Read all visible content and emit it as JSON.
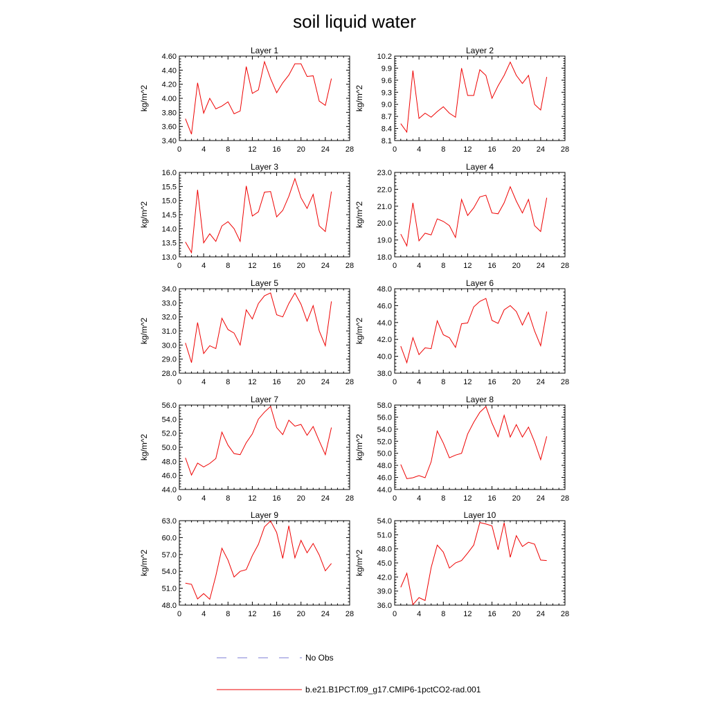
{
  "page_title": "soil liquid water",
  "chart_data": [
    {
      "type": "line",
      "title": "Layer 1",
      "ylabel": "kg/m^2",
      "xlim": [
        0,
        28
      ],
      "ylim": [
        3.4,
        4.6
      ],
      "xticks": [
        0,
        4,
        8,
        12,
        16,
        20,
        24,
        28
      ],
      "yticks": [
        "3.40",
        "3.60",
        "3.80",
        "4.00",
        "4.20",
        "4.40",
        "4.60"
      ],
      "series": [
        {
          "name": "b.e21.B1PCT.f09_g17.CMIP6-1pctCO2-rad.001",
          "x": [
            1,
            2,
            3,
            4,
            5,
            6,
            7,
            8,
            9,
            10,
            11,
            12,
            13,
            14,
            15,
            16,
            17,
            18,
            19,
            20,
            21,
            22,
            23,
            24,
            25
          ],
          "values": [
            3.71,
            3.49,
            4.22,
            3.79,
            4.0,
            3.85,
            3.89,
            3.95,
            3.78,
            3.82,
            4.45,
            4.07,
            4.12,
            4.52,
            4.28,
            4.08,
            4.22,
            4.33,
            4.49,
            4.49,
            4.31,
            4.32,
            3.96,
            3.9,
            4.28
          ]
        }
      ]
    },
    {
      "type": "line",
      "title": "Layer 2",
      "ylabel": "kg/m^2",
      "xlim": [
        0,
        28
      ],
      "ylim": [
        8.1,
        10.2
      ],
      "xticks": [
        0,
        4,
        8,
        12,
        16,
        20,
        24,
        28
      ],
      "yticks": [
        "8.1",
        "8.4",
        "8.7",
        "9.0",
        "9.3",
        "9.6",
        "9.9",
        "10.2"
      ],
      "series": [
        {
          "name": "b.e21.B1PCT.f09_g17.CMIP6-1pctCO2-rad.001",
          "x": [
            1,
            2,
            3,
            4,
            5,
            6,
            7,
            8,
            9,
            10,
            11,
            12,
            13,
            14,
            15,
            16,
            17,
            18,
            19,
            20,
            21,
            22,
            23,
            24,
            25
          ],
          "values": [
            8.52,
            8.31,
            9.84,
            8.65,
            8.78,
            8.68,
            8.82,
            8.94,
            8.78,
            8.68,
            9.9,
            9.22,
            9.22,
            9.86,
            9.72,
            9.15,
            9.46,
            9.72,
            10.05,
            9.72,
            9.52,
            9.72,
            9.0,
            8.86,
            9.68
          ]
        }
      ]
    },
    {
      "type": "line",
      "title": "Layer 3",
      "ylabel": "kg/m^2",
      "xlim": [
        0,
        28
      ],
      "ylim": [
        13.0,
        16.0
      ],
      "xticks": [
        0,
        4,
        8,
        12,
        16,
        20,
        24,
        28
      ],
      "yticks": [
        "13.0",
        "13.5",
        "14.0",
        "14.5",
        "15.0",
        "15.5",
        "16.0"
      ],
      "series": [
        {
          "name": "b.e21.B1PCT.f09_g17.CMIP6-1pctCO2-rad.001",
          "x": [
            1,
            2,
            3,
            4,
            5,
            6,
            7,
            8,
            9,
            10,
            11,
            12,
            13,
            14,
            15,
            16,
            17,
            18,
            19,
            20,
            21,
            22,
            23,
            24,
            25
          ],
          "values": [
            13.53,
            13.15,
            15.38,
            13.5,
            13.82,
            13.55,
            14.1,
            14.25,
            14.0,
            13.55,
            15.52,
            14.45,
            14.6,
            15.3,
            15.32,
            14.42,
            14.65,
            15.15,
            15.78,
            15.1,
            14.72,
            15.22,
            14.1,
            13.9,
            15.32
          ]
        }
      ]
    },
    {
      "type": "line",
      "title": "Layer 4",
      "ylabel": "kg/m^2",
      "xlim": [
        0,
        28
      ],
      "ylim": [
        18.0,
        23.0
      ],
      "xticks": [
        0,
        4,
        8,
        12,
        16,
        20,
        24,
        28
      ],
      "yticks": [
        "18.0",
        "19.0",
        "20.0",
        "21.0",
        "22.0",
        "23.0"
      ],
      "series": [
        {
          "name": "b.e21.B1PCT.f09_g17.CMIP6-1pctCO2-rad.001",
          "x": [
            1,
            2,
            3,
            4,
            5,
            6,
            7,
            8,
            9,
            10,
            11,
            12,
            13,
            14,
            15,
            16,
            17,
            18,
            19,
            20,
            21,
            22,
            23,
            24,
            25
          ],
          "values": [
            19.35,
            18.65,
            21.2,
            18.95,
            19.4,
            19.3,
            20.25,
            20.1,
            19.85,
            19.15,
            21.4,
            20.45,
            20.9,
            21.55,
            21.65,
            20.6,
            20.55,
            21.2,
            22.15,
            21.3,
            20.6,
            21.4,
            19.85,
            19.5,
            21.5
          ]
        }
      ]
    },
    {
      "type": "line",
      "title": "Layer 5",
      "ylabel": "kg/m^2",
      "xlim": [
        0,
        28
      ],
      "ylim": [
        28.0,
        34.0
      ],
      "xticks": [
        0,
        4,
        8,
        12,
        16,
        20,
        24,
        28
      ],
      "yticks": [
        "28.0",
        "29.0",
        "30.0",
        "31.0",
        "32.0",
        "33.0",
        "34.0"
      ],
      "series": [
        {
          "name": "b.e21.B1PCT.f09_g17.CMIP6-1pctCO2-rad.001",
          "x": [
            1,
            2,
            3,
            4,
            5,
            6,
            7,
            8,
            9,
            10,
            11,
            12,
            13,
            14,
            15,
            16,
            17,
            18,
            19,
            20,
            21,
            22,
            23,
            24,
            25
          ],
          "values": [
            30.15,
            28.75,
            31.6,
            29.4,
            29.95,
            29.75,
            31.9,
            31.1,
            30.85,
            30.0,
            32.5,
            31.85,
            32.95,
            33.5,
            33.7,
            32.15,
            32.0,
            32.95,
            33.7,
            32.9,
            31.7,
            32.8,
            31.0,
            29.95,
            33.1
          ]
        }
      ]
    },
    {
      "type": "line",
      "title": "Layer 6",
      "ylabel": "kg/m^2",
      "xlim": [
        0,
        28
      ],
      "ylim": [
        38.0,
        48.0
      ],
      "xticks": [
        0,
        4,
        8,
        12,
        16,
        20,
        24,
        28
      ],
      "yticks": [
        "38.0",
        "40.0",
        "42.0",
        "44.0",
        "46.0",
        "48.0"
      ],
      "series": [
        {
          "name": "b.e21.B1PCT.f09_g17.CMIP6-1pctCO2-rad.001",
          "x": [
            1,
            2,
            3,
            4,
            5,
            6,
            7,
            8,
            9,
            10,
            11,
            12,
            13,
            14,
            15,
            16,
            17,
            18,
            19,
            20,
            21,
            22,
            23,
            24,
            25
          ],
          "values": [
            41.2,
            39.25,
            42.2,
            40.2,
            41.0,
            40.9,
            44.2,
            42.55,
            42.2,
            41.05,
            43.85,
            43.95,
            45.85,
            46.5,
            46.85,
            44.25,
            43.9,
            45.5,
            46.0,
            45.3,
            43.7,
            45.2,
            43.0,
            41.25,
            45.3
          ]
        }
      ]
    },
    {
      "type": "line",
      "title": "Layer 7",
      "ylabel": "kg/m^2",
      "xlim": [
        0,
        28
      ],
      "ylim": [
        44.0,
        56.0
      ],
      "xticks": [
        0,
        4,
        8,
        12,
        16,
        20,
        24,
        28
      ],
      "yticks": [
        "44.0",
        "46.0",
        "48.0",
        "50.0",
        "52.0",
        "54.0",
        "56.0"
      ],
      "series": [
        {
          "name": "b.e21.B1PCT.f09_g17.CMIP6-1pctCO2-rad.001",
          "x": [
            1,
            2,
            3,
            4,
            5,
            6,
            7,
            8,
            9,
            10,
            11,
            12,
            13,
            14,
            15,
            16,
            17,
            18,
            19,
            20,
            21,
            22,
            23,
            24,
            25
          ],
          "values": [
            48.5,
            46.05,
            47.75,
            47.2,
            47.7,
            48.4,
            52.15,
            50.3,
            49.1,
            48.95,
            50.65,
            51.9,
            54.0,
            55.0,
            55.8,
            52.8,
            51.8,
            53.85,
            53.0,
            53.25,
            51.7,
            52.95,
            50.9,
            48.95,
            52.8
          ]
        }
      ]
    },
    {
      "type": "line",
      "title": "Layer 8",
      "ylabel": "kg/m^2",
      "xlim": [
        0,
        28
      ],
      "ylim": [
        44.0,
        58.0
      ],
      "xticks": [
        0,
        4,
        8,
        12,
        16,
        20,
        24,
        28
      ],
      "yticks": [
        "44.0",
        "46.0",
        "48.0",
        "50.0",
        "52.0",
        "54.0",
        "56.0",
        "58.0"
      ],
      "series": [
        {
          "name": "b.e21.B1PCT.f09_g17.CMIP6-1pctCO2-rad.001",
          "x": [
            1,
            2,
            3,
            4,
            5,
            6,
            7,
            8,
            9,
            10,
            11,
            12,
            13,
            14,
            15,
            16,
            17,
            18,
            19,
            20,
            21,
            22,
            23,
            24,
            25
          ],
          "values": [
            48.15,
            45.8,
            45.95,
            46.3,
            45.95,
            48.6,
            53.7,
            51.7,
            49.25,
            49.7,
            50.0,
            53.2,
            55.15,
            56.8,
            57.75,
            55.0,
            52.75,
            56.3,
            52.7,
            54.75,
            52.7,
            54.35,
            51.9,
            48.95,
            52.8
          ]
        }
      ]
    },
    {
      "type": "line",
      "title": "Layer 9",
      "ylabel": "kg/m^2",
      "xlim": [
        0,
        28
      ],
      "ylim": [
        48.0,
        63.0
      ],
      "xticks": [
        0,
        4,
        8,
        12,
        16,
        20,
        24,
        28
      ],
      "yticks": [
        "48.0",
        "51.0",
        "54.0",
        "57.0",
        "60.0",
        "63.0"
      ],
      "series": [
        {
          "name": "b.e21.B1PCT.f09_g17.CMIP6-1pctCO2-rad.001",
          "x": [
            1,
            2,
            3,
            4,
            5,
            6,
            7,
            8,
            9,
            10,
            11,
            12,
            13,
            14,
            15,
            16,
            17,
            18,
            19,
            20,
            21,
            22,
            23,
            24,
            25
          ],
          "values": [
            51.9,
            51.7,
            49.1,
            50.05,
            49.05,
            53.2,
            58.1,
            56.0,
            53.0,
            54.0,
            54.3,
            56.8,
            58.8,
            61.9,
            62.95,
            60.9,
            56.3,
            62.1,
            56.4,
            59.5,
            57.3,
            58.95,
            56.9,
            54.1,
            55.4
          ]
        }
      ]
    },
    {
      "type": "line",
      "title": "Layer 10",
      "ylabel": "kg/m^2",
      "xlim": [
        0,
        28
      ],
      "ylim": [
        36.0,
        54.0
      ],
      "xticks": [
        0,
        4,
        8,
        12,
        16,
        20,
        24,
        28
      ],
      "yticks": [
        "36.0",
        "39.0",
        "42.0",
        "45.0",
        "48.0",
        "51.0",
        "54.0"
      ],
      "series": [
        {
          "name": "b.e21.B1PCT.f09_g17.CMIP6-1pctCO2-rad.001",
          "x": [
            1,
            2,
            3,
            4,
            5,
            6,
            7,
            8,
            9,
            10,
            11,
            12,
            13,
            14,
            15,
            16,
            17,
            18,
            19,
            20,
            21,
            22,
            23,
            24,
            25
          ],
          "values": [
            39.8,
            42.8,
            36.1,
            37.6,
            37.0,
            44.0,
            48.8,
            47.3,
            43.9,
            45.0,
            45.5,
            47.1,
            48.8,
            53.6,
            53.3,
            52.9,
            47.8,
            53.55,
            46.2,
            50.8,
            48.5,
            49.4,
            49.0,
            45.6,
            45.5
          ]
        }
      ]
    }
  ],
  "legend": [
    {
      "label": "No Obs",
      "color": "#7b7bd6",
      "style": "dashed"
    },
    {
      "label": "b.e21.B1PCT.f09_g17.CMIP6-1pctCO2-rad.001",
      "color": "#ee0000",
      "style": "solid"
    }
  ]
}
